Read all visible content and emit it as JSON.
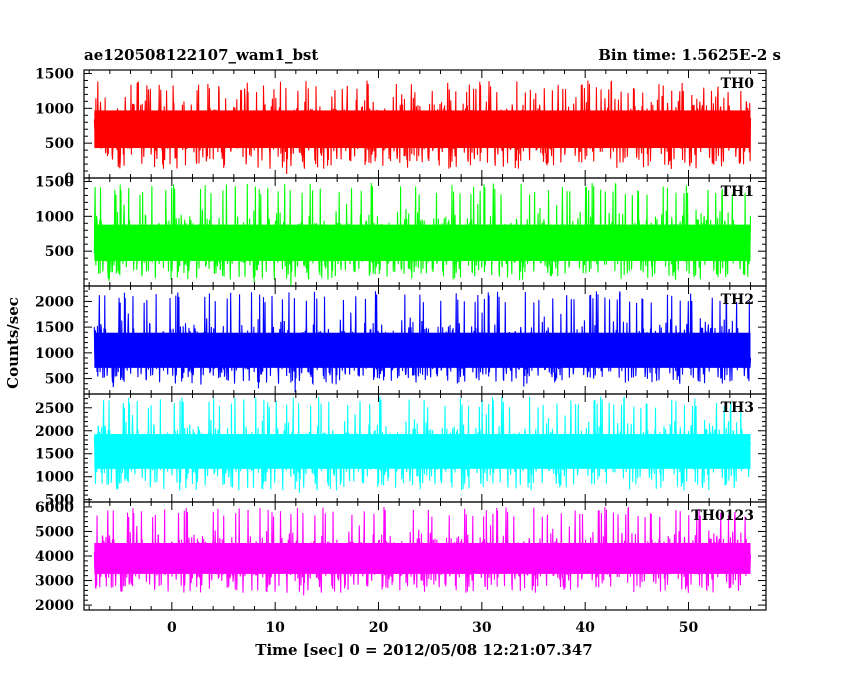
{
  "header": {
    "left": "ae120508122107_wam1_bst",
    "right": "Bin time: 1.5625E-2 s"
  },
  "chart_data": {
    "type": "line",
    "xlabel": "Time [sec] 0 = 2012/05/08 12:21:07.347",
    "ylabel": "Counts/sec",
    "xlim": [
      -8.5,
      57.5
    ],
    "x_ticks": [
      0,
      10,
      20,
      30,
      40,
      50
    ],
    "x_range": [
      -7.5,
      56
    ],
    "bin_time": 0.015625,
    "panels": [
      {
        "name": "TH0",
        "color": "#ff0000",
        "ylim": [
          0,
          1550
        ],
        "y_ticks": [
          0,
          500,
          1000,
          1500
        ],
        "mean": 700,
        "low": 130,
        "high": 1400,
        "spread": 300
      },
      {
        "name": "TH1",
        "color": "#00ff00",
        "ylim": [
          0,
          1550
        ],
        "y_ticks": [
          500,
          1000,
          1500
        ],
        "mean": 620,
        "low": 90,
        "high": 1480,
        "spread": 290
      },
      {
        "name": "TH2",
        "color": "#0000ff",
        "ylim": [
          200,
          2300
        ],
        "y_ticks": [
          500,
          1000,
          1500,
          2000
        ],
        "mean": 1050,
        "low": 400,
        "high": 2200,
        "spread": 380
      },
      {
        "name": "TH3",
        "color": "#00ffff",
        "ylim": [
          450,
          2800
        ],
        "y_ticks": [
          500,
          1000,
          1500,
          2000,
          2500
        ],
        "mean": 1550,
        "low": 700,
        "high": 2750,
        "spread": 420
      },
      {
        "name": "TH0123",
        "color": "#ff00ff",
        "ylim": [
          1800,
          6200
        ],
        "y_ticks": [
          2000,
          3000,
          4000,
          5000,
          6000
        ],
        "mean": 3900,
        "low": 2500,
        "high": 6000,
        "spread": 700
      }
    ]
  }
}
